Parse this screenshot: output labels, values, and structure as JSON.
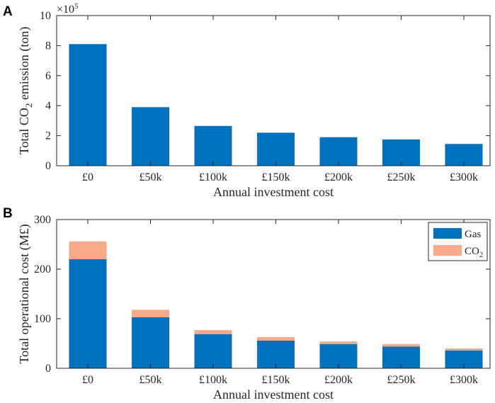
{
  "chart_data": [
    {
      "panel": "A",
      "type": "bar",
      "categories": [
        "£0",
        "£50k",
        "£100k",
        "£150k",
        "£200k",
        "£250k",
        "£300k"
      ],
      "values": [
        8.1,
        3.9,
        2.65,
        2.2,
        1.9,
        1.75,
        1.45
      ],
      "scale_exponent_label": "×10",
      "scale_exponent_power": "5",
      "xlabel": "Annual investment cost",
      "ylabel_prefix": "Total CO",
      "ylabel_sub": "2",
      "ylabel_suffix": " emission (ton)",
      "ylim": [
        0,
        10
      ],
      "yticks": [
        0,
        2,
        4,
        6,
        8,
        10
      ],
      "color": "#0072BD"
    },
    {
      "panel": "B",
      "type": "bar",
      "stacked": true,
      "categories": [
        "£0",
        "£50k",
        "£100k",
        "£150k",
        "£200k",
        "£250k",
        "£300k"
      ],
      "series": [
        {
          "name": "Gas",
          "values": [
            220,
            103,
            69,
            56,
            49,
            44,
            36
          ],
          "color": "#0072BD"
        },
        {
          "name": "CO2",
          "name_base": "CO",
          "name_sub": "2",
          "values": [
            36,
            15,
            8,
            7,
            5,
            5,
            4
          ],
          "color": "#F8A98A"
        }
      ],
      "xlabel": "Annual investment cost",
      "ylabel": "Total operational cost (M£)",
      "ylim": [
        0,
        300
      ],
      "yticks": [
        0,
        100,
        200,
        300
      ],
      "legend_position": "top-right"
    }
  ]
}
